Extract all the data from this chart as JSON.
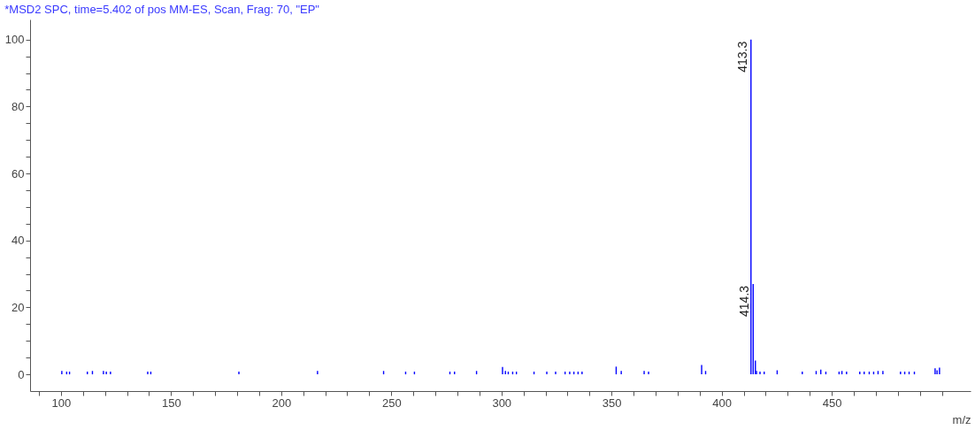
{
  "chart_data": {
    "type": "bar",
    "title": "*MSD2 SPC, time=5.402 of pos  MM-ES, Scan, Frag: 70, \"EP\"",
    "xlabel": "m/z",
    "x": [
      100.4,
      102.6,
      103.9,
      112,
      114.3,
      119.3,
      120.6,
      122.5,
      139.4,
      140.8,
      180.8,
      216.5,
      246.5,
      256.5,
      260.5,
      276.6,
      278.7,
      288.7,
      300.5,
      301.8,
      303.1,
      305.1,
      306.8,
      314.8,
      320.6,
      324.6,
      328.9,
      331,
      332.9,
      334.8,
      336.6,
      352.1,
      354.4,
      364.8,
      366.8,
      390.9,
      392.7,
      413.3,
      414.3,
      415.3,
      415.8,
      417.4,
      419.3,
      425.2,
      436.6,
      442.9,
      445,
      447.3,
      453.3,
      454.6,
      456.7,
      462.7,
      464.7,
      467,
      469,
      471,
      473.2,
      481.2,
      483.1,
      485.1,
      487.5,
      496.9,
      497.8,
      498.9
    ],
    "values": [
      1,
      0.8,
      0.8,
      0.8,
      1,
      1,
      0.8,
      0.8,
      0.8,
      0.8,
      0.8,
      1,
      1,
      0.8,
      0.8,
      0.8,
      0.8,
      1,
      2.2,
      1,
      0.8,
      0.8,
      0.8,
      0.8,
      0.8,
      0.8,
      0.8,
      0.8,
      0.8,
      0.8,
      0.8,
      2.3,
      1,
      1,
      0.8,
      2.8,
      1,
      100,
      27,
      4.1,
      1,
      0.8,
      0.8,
      1.2,
      0.8,
      1,
      1.4,
      0.8,
      0.8,
      1,
      0.8,
      0.8,
      0.8,
      0.8,
      0.8,
      1,
      1,
      0.8,
      0.8,
      0.8,
      0.8,
      1.8,
      1.2,
      2
    ],
    "color": "#0000ff",
    "annotations": [
      {
        "text": "413.3",
        "x": 413.3,
        "y": 100
      },
      {
        "text": "414.3",
        "x": 414.3,
        "y": 27
      }
    ],
    "xlim": [
      88,
      511
    ],
    "ylim": [
      -5,
      106
    ],
    "xticks": [
      {
        "value": 90,
        "label": null
      },
      100,
      {
        "value": 110,
        "label": null
      },
      {
        "value": 120,
        "label": null
      },
      {
        "value": 130,
        "label": null
      },
      {
        "value": 140,
        "label": null
      },
      150,
      {
        "value": 160,
        "label": null
      },
      {
        "value": 170,
        "label": null
      },
      {
        "value": 180,
        "label": null
      },
      {
        "value": 190,
        "label": null
      },
      200,
      {
        "value": 210,
        "label": null
      },
      {
        "value": 220,
        "label": null
      },
      {
        "value": 230,
        "label": null
      },
      {
        "value": 240,
        "label": null
      },
      250,
      {
        "value": 260,
        "label": null
      },
      {
        "value": 270,
        "label": null
      },
      {
        "value": 280,
        "label": null
      },
      {
        "value": 290,
        "label": null
      },
      300,
      {
        "value": 310,
        "label": null
      },
      {
        "value": 320,
        "label": null
      },
      {
        "value": 330,
        "label": null
      },
      {
        "value": 340,
        "label": null
      },
      350,
      {
        "value": 360,
        "label": null
      },
      {
        "value": 370,
        "label": null
      },
      {
        "value": 380,
        "label": null
      },
      {
        "value": 390,
        "label": null
      },
      400,
      {
        "value": 410,
        "label": null
      },
      {
        "value": 420,
        "label": null
      },
      {
        "value": 430,
        "label": null
      },
      {
        "value": 440,
        "label": null
      },
      450,
      {
        "value": 460,
        "label": null
      },
      {
        "value": 470,
        "label": null
      },
      {
        "value": 480,
        "label": null
      },
      {
        "value": 490,
        "label": null
      },
      {
        "value": 500,
        "label": null
      }
    ],
    "yticks": [
      0,
      {
        "value": 5,
        "label": null
      },
      {
        "value": 10,
        "label": null
      },
      {
        "value": 15,
        "label": null
      },
      20,
      {
        "value": 25,
        "label": null
      },
      {
        "value": 30,
        "label": null
      },
      {
        "value": 35,
        "label": null
      },
      40,
      {
        "value": 45,
        "label": null
      },
      {
        "value": 50,
        "label": null
      },
      {
        "value": 55,
        "label": null
      },
      60,
      {
        "value": 65,
        "label": null
      },
      {
        "value": 70,
        "label": null
      },
      {
        "value": 75,
        "label": null
      },
      80,
      {
        "value": 85,
        "label": null
      },
      {
        "value": 90,
        "label": null
      },
      {
        "value": 95,
        "label": null
      },
      100
    ],
    "grid": false
  }
}
